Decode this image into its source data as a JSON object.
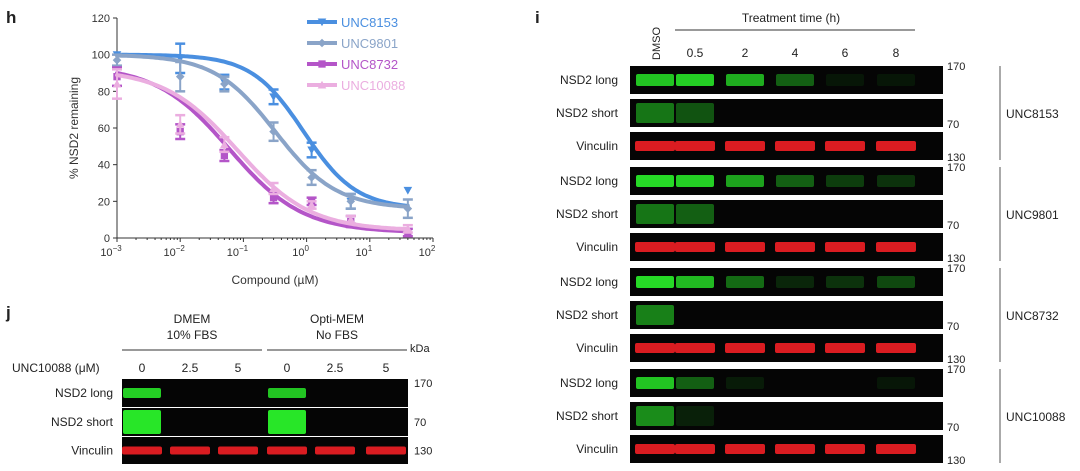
{
  "panels": {
    "h": "h",
    "i": "i",
    "j": "j"
  },
  "chart_data": {
    "type": "line",
    "title": "",
    "xlabel": "Compound (µM)",
    "ylabel": "% NSD2 remaining",
    "x_scale": "log",
    "xlim": [
      0.001,
      100
    ],
    "ylim": [
      0,
      120
    ],
    "x_ticks": [
      0.001,
      0.01,
      0.1,
      1,
      10,
      100
    ],
    "x_tick_labels": [
      {
        "base": "10",
        "exp": "−3"
      },
      {
        "base": "10",
        "exp": "−2"
      },
      {
        "base": "10",
        "exp": "−1"
      },
      {
        "base": "10",
        "exp": "0"
      },
      {
        "base": "10",
        "exp": "1"
      },
      {
        "base": "10",
        "exp": "2"
      }
    ],
    "y_ticks": [
      0,
      20,
      40,
      60,
      80,
      100,
      120
    ],
    "legend": "top-right",
    "series": [
      {
        "name": "UNC8153",
        "color": "#4a8fe0",
        "marker": "triangle-down",
        "x": [
          0.001,
          0.01,
          0.05,
          0.3,
          1.2,
          5,
          40
        ],
        "y": [
          100,
          98,
          85,
          77,
          48,
          20,
          26
        ],
        "err": [
          0,
          8,
          4,
          4,
          4,
          4,
          0
        ],
        "curve": {
          "top": 100,
          "bottom": 16,
          "ic50": 0.9,
          "hill": 1.05
        }
      },
      {
        "name": "UNC9801",
        "color": "#8aa4c8",
        "marker": "diamond",
        "x": [
          0.001,
          0.01,
          0.05,
          0.3,
          1.2,
          5,
          40
        ],
        "y": [
          97,
          88,
          84,
          58,
          33,
          20,
          16
        ],
        "err": [
          3,
          8,
          4,
          5,
          4,
          4,
          5
        ],
        "curve": {
          "top": 100,
          "bottom": 16,
          "ic50": 0.32,
          "hill": 0.9
        }
      },
      {
        "name": "UNC8732",
        "color": "#b455c8",
        "marker": "square",
        "x": [
          0.001,
          0.01,
          0.05,
          0.3,
          1.2,
          5,
          40
        ],
        "y": [
          88,
          58,
          45,
          22,
          20,
          9,
          3
        ],
        "err": [
          5,
          4,
          3,
          3,
          2,
          3,
          2
        ],
        "curve": {
          "top": 94,
          "bottom": 3,
          "ic50": 0.06,
          "hill": 0.75
        }
      },
      {
        "name": "UNC10088",
        "color": "#ebaee0",
        "marker": "triangle-up",
        "x": [
          0.001,
          0.01,
          0.05,
          0.3,
          1.2,
          5,
          40
        ],
        "y": [
          84,
          62,
          51,
          27,
          18,
          10,
          5
        ],
        "err": [
          8,
          5,
          4,
          3,
          2,
          2,
          2
        ],
        "curve": {
          "top": 92,
          "bottom": 4,
          "ic50": 0.08,
          "hill": 0.75
        }
      }
    ]
  },
  "panel_i": {
    "dmso_label": "DMSO",
    "treatment_title": "Treatment time (h)",
    "times": [
      "0.5",
      "2",
      "4",
      "6",
      "8"
    ],
    "row_labels": [
      "NSD2 long",
      "NSD2 short",
      "Vinculin"
    ],
    "kda_labels": [
      "170",
      "70",
      "130"
    ],
    "groups": [
      {
        "name": "UNC8153",
        "long": [
          0.85,
          0.9,
          0.75,
          0.4,
          0.08,
          0.05
        ],
        "short": [
          0.5,
          0.35,
          0,
          0,
          0,
          0
        ]
      },
      {
        "name": "UNC9801",
        "long": [
          0.95,
          0.9,
          0.7,
          0.4,
          0.25,
          0.2
        ],
        "short": [
          0.5,
          0.4,
          0,
          0,
          0,
          0
        ]
      },
      {
        "name": "UNC8732",
        "long": [
          0.95,
          0.8,
          0.45,
          0.15,
          0.2,
          0.3
        ],
        "short": [
          0.55,
          0,
          0,
          0,
          0,
          0
        ]
      },
      {
        "name": "UNC10088",
        "long": [
          0.85,
          0.4,
          0.1,
          0,
          0,
          0.05
        ],
        "short": [
          0.6,
          0.12,
          0,
          0,
          0,
          0
        ]
      }
    ]
  },
  "panel_j": {
    "conditions": [
      {
        "line1": "DMEM",
        "line2": "10% FBS"
      },
      {
        "line1": "Opti-MEM",
        "line2": "No FBS"
      }
    ],
    "kda_header": "kDa",
    "dose_label": "UNC10088 (μM)",
    "doses": [
      "0",
      "2.5",
      "5",
      "0",
      "2.5",
      "5"
    ],
    "row_labels": [
      "NSD2 long",
      "NSD2 short",
      "Vinculin"
    ],
    "kda_labels": [
      "170",
      "70",
      "130"
    ],
    "long": [
      0.9,
      0,
      0,
      0.85,
      0,
      0
    ],
    "short": [
      1,
      0,
      0,
      1,
      0,
      0
    ]
  }
}
